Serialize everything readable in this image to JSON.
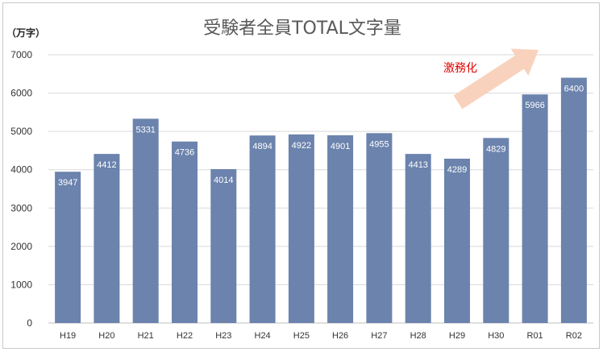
{
  "chart_data": {
    "type": "bar",
    "title": "受験者全員TOTAL文字量",
    "unit_label": "（万字）",
    "categories": [
      "H19",
      "H20",
      "H21",
      "H22",
      "H23",
      "H24",
      "H25",
      "H26",
      "H27",
      "H28",
      "H29",
      "H30",
      "R01",
      "R02"
    ],
    "values": [
      3947,
      4412,
      5331,
      4736,
      4014,
      4894,
      4922,
      4901,
      4955,
      4413,
      4289,
      4829,
      5966,
      6400
    ],
    "ylim": [
      0,
      7000
    ],
    "yticks": [
      "0",
      "1000",
      "2000",
      "3000",
      "4000",
      "5000",
      "6000",
      "7000"
    ],
    "grid": true,
    "annotation": "激務化",
    "colors": {
      "bar": "#6b83ad",
      "grid": "#d9d9d9",
      "axis": "#bfbfbf",
      "arrow": "#f9d2bd",
      "annotation": "#e00000"
    }
  }
}
